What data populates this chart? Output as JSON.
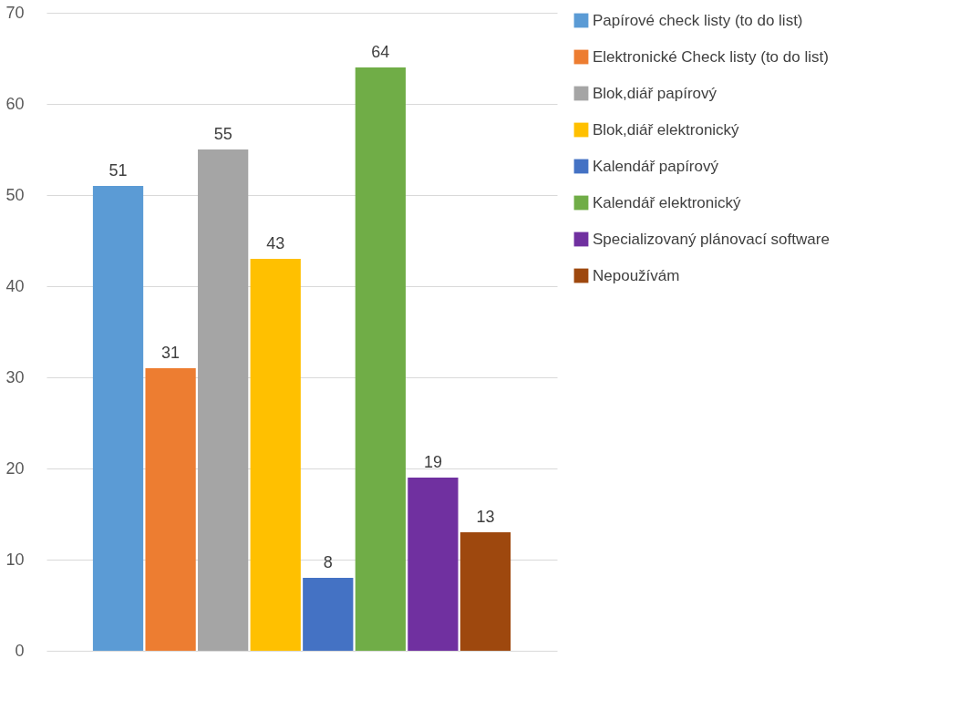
{
  "chart_data": {
    "type": "bar",
    "categories": [
      null
    ],
    "series": [
      {
        "name": "Papírové check listy (to do list)",
        "color": "#5b9bd5",
        "values": [
          51
        ]
      },
      {
        "name": "Elektronické Check listy (to do list)",
        "color": "#ed7d31",
        "values": [
          31
        ]
      },
      {
        "name": "Blok,diář papírový",
        "color": "#a5a5a5",
        "values": [
          55
        ]
      },
      {
        "name": "Blok,diář elektronický",
        "color": "#ffc000",
        "values": [
          43
        ]
      },
      {
        "name": "Kalendář papírový",
        "color": "#4472c4",
        "values": [
          8
        ]
      },
      {
        "name": "Kalendář elektronický",
        "color": "#70ad47",
        "values": [
          64
        ]
      },
      {
        "name": "Specializovaný plánovací software",
        "color": "#7030a0",
        "values": [
          19
        ]
      },
      {
        "name": "Nepoužívám",
        "color": "#9e480e",
        "values": [
          13
        ]
      }
    ],
    "ylim": [
      0,
      70
    ],
    "yticks": [
      0,
      10,
      20,
      30,
      40,
      50,
      60,
      70
    ],
    "grid": "y",
    "legend": "right",
    "data_labels": true,
    "tick_labels": "y"
  }
}
